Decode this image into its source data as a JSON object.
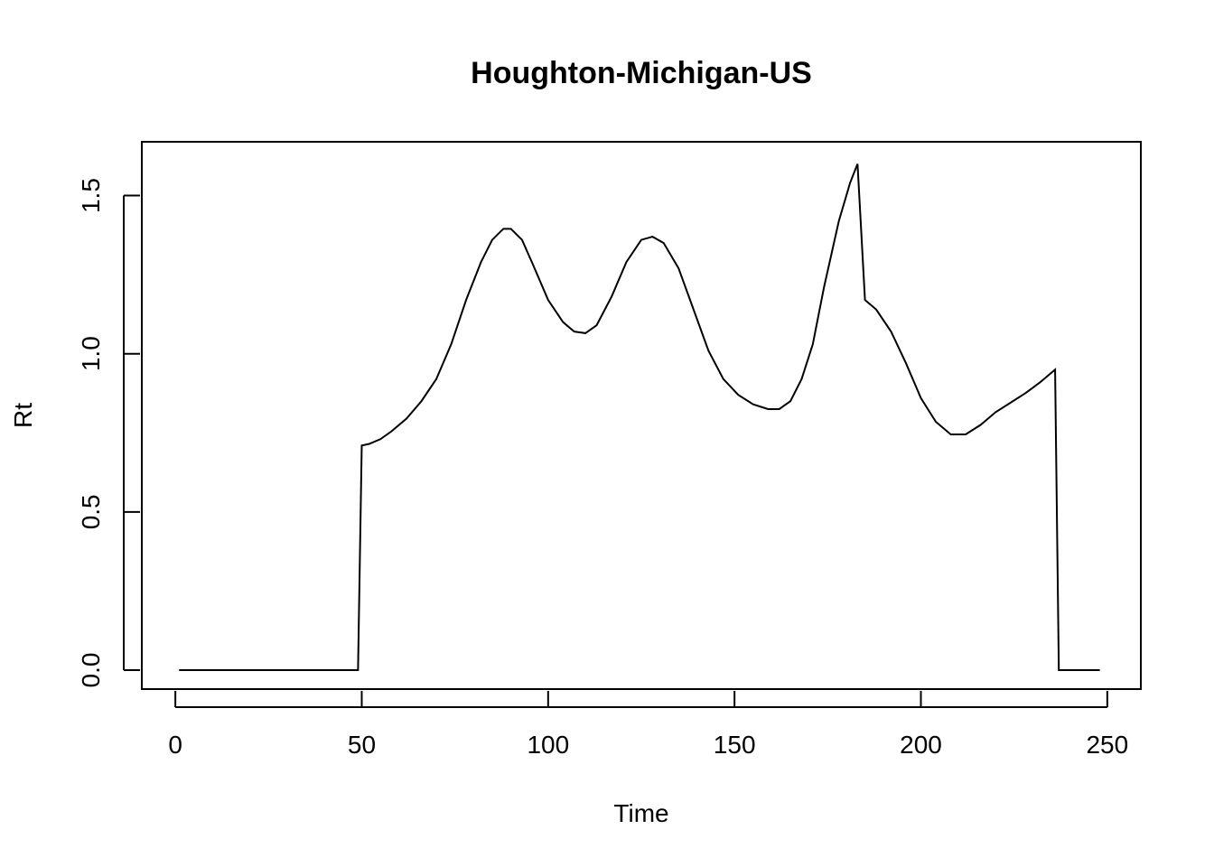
{
  "chart_data": {
    "type": "line",
    "title": "Houghton-Michigan-US",
    "xlabel": "Time",
    "ylabel": "Rt",
    "xlim": [
      -9,
      259
    ],
    "ylim": [
      -0.06,
      1.67
    ],
    "x_ticks": [
      0,
      50,
      100,
      150,
      200,
      250
    ],
    "x_tick_labels": [
      "0",
      "50",
      "100",
      "150",
      "200",
      "250"
    ],
    "y_ticks": [
      0.0,
      0.5,
      1.0,
      1.5
    ],
    "y_tick_labels": [
      "0.0",
      "0.5",
      "1.0",
      "1.5"
    ],
    "grid": false,
    "legend": "none",
    "series": [
      {
        "color": "#000000",
        "points": [
          [
            1,
            0.0
          ],
          [
            10,
            0.0
          ],
          [
            20,
            0.0
          ],
          [
            30,
            0.0
          ],
          [
            40,
            0.0
          ],
          [
            49,
            0.0
          ],
          [
            50,
            0.71
          ],
          [
            52,
            0.715
          ],
          [
            55,
            0.73
          ],
          [
            58,
            0.755
          ],
          [
            62,
            0.795
          ],
          [
            66,
            0.85
          ],
          [
            70,
            0.92
          ],
          [
            74,
            1.03
          ],
          [
            78,
            1.17
          ],
          [
            82,
            1.29
          ],
          [
            85,
            1.36
          ],
          [
            88,
            1.395
          ],
          [
            90,
            1.395
          ],
          [
            93,
            1.36
          ],
          [
            96,
            1.28
          ],
          [
            100,
            1.17
          ],
          [
            104,
            1.1
          ],
          [
            107,
            1.07
          ],
          [
            110,
            1.065
          ],
          [
            113,
            1.09
          ],
          [
            117,
            1.18
          ],
          [
            121,
            1.29
          ],
          [
            125,
            1.36
          ],
          [
            128,
            1.37
          ],
          [
            131,
            1.35
          ],
          [
            135,
            1.27
          ],
          [
            139,
            1.14
          ],
          [
            143,
            1.01
          ],
          [
            147,
            0.92
          ],
          [
            151,
            0.87
          ],
          [
            155,
            0.84
          ],
          [
            159,
            0.825
          ],
          [
            162,
            0.825
          ],
          [
            165,
            0.85
          ],
          [
            168,
            0.92
          ],
          [
            171,
            1.03
          ],
          [
            174,
            1.21
          ],
          [
            178,
            1.42
          ],
          [
            181,
            1.54
          ],
          [
            183,
            1.6
          ],
          [
            185,
            1.17
          ],
          [
            188,
            1.14
          ],
          [
            192,
            1.07
          ],
          [
            196,
            0.97
          ],
          [
            200,
            0.86
          ],
          [
            204,
            0.785
          ],
          [
            208,
            0.745
          ],
          [
            212,
            0.745
          ],
          [
            216,
            0.775
          ],
          [
            220,
            0.815
          ],
          [
            224,
            0.845
          ],
          [
            228,
            0.875
          ],
          [
            232,
            0.91
          ],
          [
            236,
            0.95
          ],
          [
            237,
            0.0
          ],
          [
            240,
            0.0
          ],
          [
            244,
            0.0
          ],
          [
            248,
            0.0
          ]
        ]
      }
    ]
  }
}
